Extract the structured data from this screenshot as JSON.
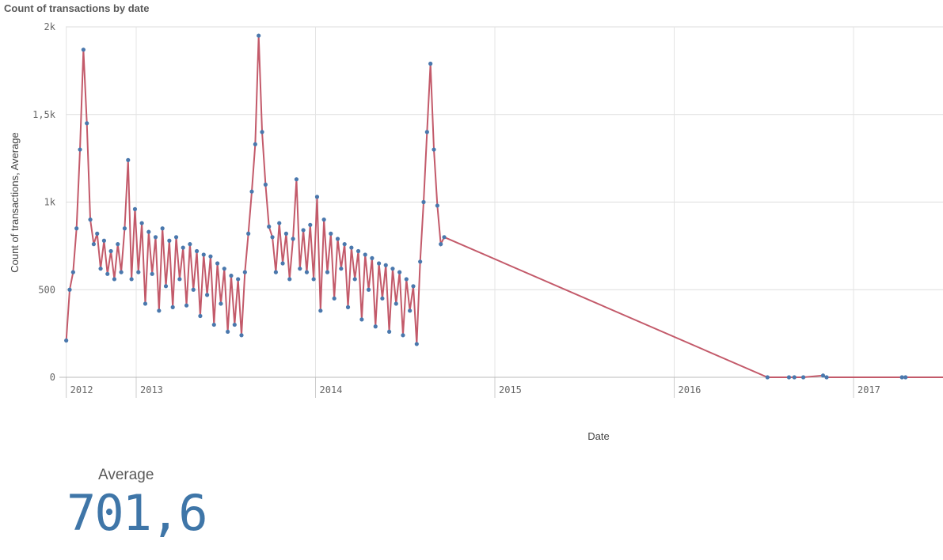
{
  "chart_data": {
    "type": "line",
    "title": "Count of transactions by date",
    "xlabel": "Date",
    "ylabel": "Count of transactions, Average",
    "ylim": [
      0,
      2000
    ],
    "yticks": [
      0,
      500,
      1000,
      1500,
      2000
    ],
    "ytick_labels": [
      "0",
      "500",
      "1k",
      "1,5k",
      "2k"
    ],
    "xlim": [
      2012.61,
      2017.5
    ],
    "xticks": [
      2012.61,
      2013,
      2014,
      2015,
      2016,
      2017
    ],
    "xtick_labels": [
      "2012",
      "2013",
      "2014",
      "2015",
      "2016",
      "2017"
    ],
    "grid": true,
    "legend": "none",
    "line_color": "#c35a6a",
    "marker_color": "#4a78ad",
    "series_start_year": 2012.61,
    "series_step_years": 0.01916,
    "values": [
      210,
      500,
      600,
      850,
      1300,
      1870,
      1450,
      900,
      760,
      820,
      620,
      780,
      590,
      720,
      560,
      760,
      600,
      850,
      1240,
      560,
      960,
      600,
      880,
      420,
      830,
      590,
      800,
      380,
      850,
      520,
      780,
      400,
      800,
      560,
      740,
      410,
      760,
      500,
      720,
      350,
      700,
      470,
      690,
      300,
      650,
      420,
      620,
      260,
      580,
      300,
      560,
      240,
      600,
      820,
      1060,
      1330,
      1950,
      1400,
      1100,
      860,
      800,
      600,
      880,
      650,
      820,
      560,
      790,
      1130,
      620,
      840,
      600,
      870,
      560,
      1030,
      380,
      900,
      600,
      820,
      450,
      790,
      620,
      760,
      400,
      740,
      560,
      720,
      330,
      700,
      500,
      680,
      290,
      650,
      450,
      640,
      260,
      620,
      420,
      600,
      240,
      560,
      380,
      520,
      190,
      660,
      1000,
      1400,
      1790,
      1300,
      980,
      760,
      800
    ],
    "tail_points": [
      [
        2016.52,
        0
      ],
      [
        2016.64,
        0
      ],
      [
        2016.67,
        0
      ],
      [
        2016.72,
        0
      ],
      [
        2016.83,
        10
      ],
      [
        2016.85,
        0
      ],
      [
        2017.27,
        0
      ],
      [
        2017.29,
        0
      ]
    ],
    "tail_end": [
      2017.5,
      0
    ]
  },
  "kpi": {
    "label": "Average",
    "value": "701,6"
  },
  "colors": {
    "kpi": "#3f76a8"
  }
}
